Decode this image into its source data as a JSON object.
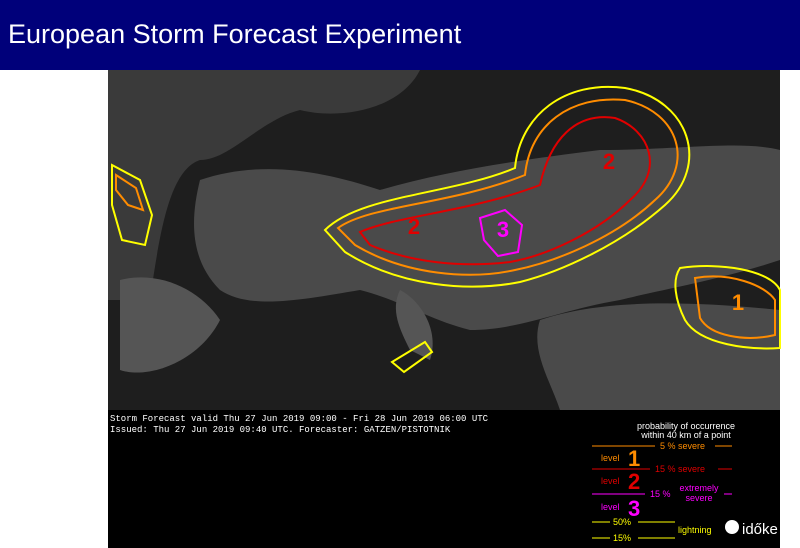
{
  "header": {
    "title": "European Storm Forecast Experiment"
  },
  "map": {
    "area_labels": [
      "2",
      "2",
      "3",
      "1"
    ]
  },
  "forecast": {
    "valid": "Storm Forecast valid Thu 27 Jun 2019 09:00 - Fri 28 Jun 2019 06:00 UTC",
    "issued": "Issued: Thu 27 Jun 2019 09:40 UTC. Forecaster: GATZEN/PISTOTNIK"
  },
  "legend": {
    "heading": [
      "probability of occurrence",
      "within 40 km of a point"
    ],
    "severe_5": "5 % severe",
    "level_word": "level",
    "level_1": "1",
    "severe_15": "15 % severe",
    "level_2": "2",
    "extreme_pct": "15 %",
    "extreme_text": [
      "extremely",
      "severe"
    ],
    "level_3": "3",
    "lightning_50": "50%",
    "lightning": "lightning",
    "lightning_15": "15%"
  },
  "logo": "időke"
}
